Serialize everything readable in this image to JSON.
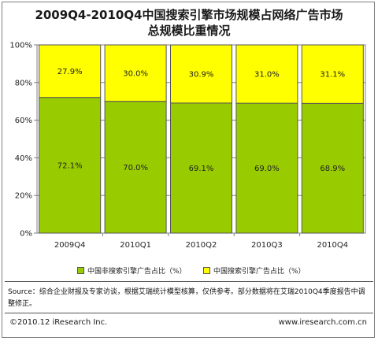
{
  "title_line1": "2009Q4-2010Q4中国搜索引擎市场规模占网络广告市场",
  "title_line2": "总规模比重情况",
  "legend": [
    {
      "label": "中国非搜索引擎广告占比（%）",
      "color": "#99cc00"
    },
    {
      "label": "中国搜索引擎广告占比（%）",
      "color": "#ffff00"
    }
  ],
  "source": "Source：综合企业财报及专家访谈，根据艾瑞统计模型核算，仅供参考。部分数据将在艾瑞2010Q4季度报告中调整修正。",
  "footer_left": "©2010.12 iResearch Inc.",
  "footer_right": "www.iresearch.com.cn",
  "chart_data": {
    "type": "bar",
    "stacked": true,
    "categories": [
      "2009Q4",
      "2010Q1",
      "2010Q2",
      "2010Q3",
      "2010Q4"
    ],
    "series": [
      {
        "name": "中国非搜索引擎广告占比（%）",
        "values": [
          72.1,
          70.0,
          69.1,
          69.0,
          68.9
        ],
        "labels": [
          "72.1%",
          "70.0%",
          "69.1%",
          "69.0%",
          "68.9%"
        ],
        "color": "#99cc00"
      },
      {
        "name": "中国搜索引擎广告占比（%）",
        "values": [
          27.9,
          30.0,
          30.9,
          31.0,
          31.1
        ],
        "labels": [
          "27.9%",
          "30.0%",
          "30.9%",
          "31.0%",
          "31.1%"
        ],
        "color": "#ffff00"
      }
    ],
    "yticks": [
      "0%",
      "20%",
      "40%",
      "60%",
      "80%",
      "100%"
    ],
    "ylim": [
      0,
      100
    ],
    "grid": true,
    "legend_position": "bottom"
  }
}
